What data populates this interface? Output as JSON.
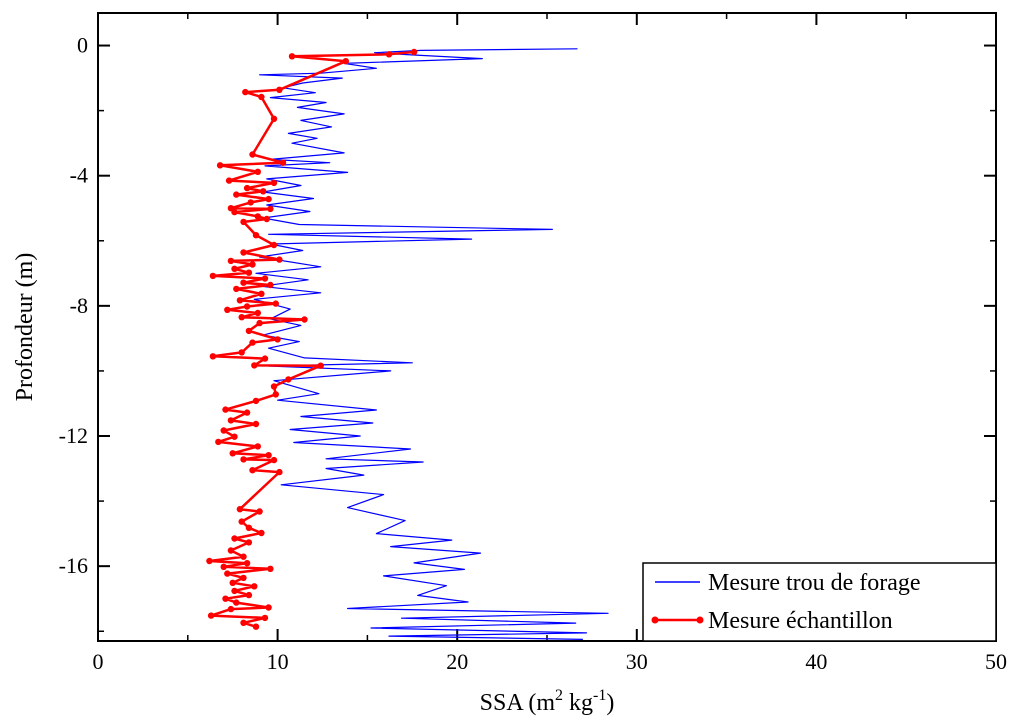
{
  "chart_data": {
    "type": "line",
    "xlabel": "SSA",
    "xlabel_unit_parts": [
      "(m",
      "2",
      " kg",
      "-1",
      ")"
    ],
    "ylabel": "Profondeur (m)",
    "xlim": [
      0,
      50
    ],
    "ylim": [
      -18.3,
      1.0
    ],
    "x_ticks": [
      0,
      10,
      20,
      30,
      40,
      50
    ],
    "x_tick_labels": [
      "0",
      "10",
      "20",
      "30",
      "40",
      "50"
    ],
    "y_ticks": [
      0,
      -4,
      -8,
      -12,
      -16
    ],
    "y_tick_labels": [
      "0",
      "-4",
      "-8",
      "-12",
      "-16"
    ],
    "grid": false,
    "legend_position": "bottom-right",
    "series": [
      {
        "name": "Mesure trou de forage",
        "color": "#0000ff",
        "marker": "none",
        "points": [
          [
            26.7,
            -0.1
          ],
          [
            18.0,
            -0.15
          ],
          [
            15.4,
            -0.22
          ],
          [
            17.2,
            -0.28
          ],
          [
            21.4,
            -0.4
          ],
          [
            13.7,
            -0.55
          ],
          [
            15.5,
            -0.7
          ],
          [
            12.4,
            -0.85
          ],
          [
            9.0,
            -0.9
          ],
          [
            13.6,
            -1.0
          ],
          [
            11.4,
            -1.15
          ],
          [
            10.3,
            -1.3
          ],
          [
            12.1,
            -1.45
          ],
          [
            9.6,
            -1.6
          ],
          [
            12.7,
            -1.75
          ],
          [
            11.1,
            -1.9
          ],
          [
            13.7,
            -2.1
          ],
          [
            11.3,
            -2.3
          ],
          [
            13.0,
            -2.5
          ],
          [
            10.6,
            -2.7
          ],
          [
            12.2,
            -2.85
          ],
          [
            10.8,
            -3.0
          ],
          [
            13.7,
            -3.3
          ],
          [
            9.6,
            -3.5
          ],
          [
            12.9,
            -3.6
          ],
          [
            9.3,
            -3.7
          ],
          [
            13.9,
            -3.9
          ],
          [
            9.4,
            -4.1
          ],
          [
            11.3,
            -4.3
          ],
          [
            9.2,
            -4.5
          ],
          [
            12.0,
            -4.7
          ],
          [
            9.4,
            -4.9
          ],
          [
            11.8,
            -5.1
          ],
          [
            9.2,
            -5.3
          ],
          [
            11.2,
            -5.5
          ],
          [
            25.3,
            -5.65
          ],
          [
            9.5,
            -5.8
          ],
          [
            20.8,
            -5.95
          ],
          [
            9.6,
            -6.1
          ],
          [
            11.4,
            -6.3
          ],
          [
            9.0,
            -6.5
          ],
          [
            12.4,
            -6.8
          ],
          [
            8.8,
            -7.0
          ],
          [
            11.7,
            -7.2
          ],
          [
            9.1,
            -7.4
          ],
          [
            12.4,
            -7.6
          ],
          [
            8.7,
            -7.8
          ],
          [
            10.7,
            -8.1
          ],
          [
            9.6,
            -8.4
          ],
          [
            11.3,
            -8.6
          ],
          [
            9.2,
            -8.9
          ],
          [
            11.2,
            -9.1
          ],
          [
            9.5,
            -9.3
          ],
          [
            11.5,
            -9.6
          ],
          [
            17.5,
            -9.75
          ],
          [
            9.5,
            -9.85
          ],
          [
            16.3,
            -10.0
          ],
          [
            9.8,
            -10.3
          ],
          [
            12.3,
            -10.7
          ],
          [
            10.0,
            -10.9
          ],
          [
            15.5,
            -11.2
          ],
          [
            11.3,
            -11.4
          ],
          [
            15.3,
            -11.6
          ],
          [
            10.7,
            -11.8
          ],
          [
            14.6,
            -12.0
          ],
          [
            10.9,
            -12.2
          ],
          [
            17.4,
            -12.4
          ],
          [
            12.7,
            -12.7
          ],
          [
            18.1,
            -12.8
          ],
          [
            12.7,
            -13.0
          ],
          [
            14.8,
            -13.2
          ],
          [
            10.2,
            -13.5
          ],
          [
            15.9,
            -13.8
          ],
          [
            13.9,
            -14.2
          ],
          [
            17.1,
            -14.6
          ],
          [
            15.5,
            -15.0
          ],
          [
            19.7,
            -15.2
          ],
          [
            16.3,
            -15.4
          ],
          [
            21.3,
            -15.6
          ],
          [
            17.6,
            -15.9
          ],
          [
            20.4,
            -16.1
          ],
          [
            15.9,
            -16.3
          ],
          [
            19.4,
            -16.6
          ],
          [
            17.8,
            -16.9
          ],
          [
            20.6,
            -17.1
          ],
          [
            13.9,
            -17.3
          ],
          [
            28.4,
            -17.45
          ],
          [
            16.9,
            -17.6
          ],
          [
            26.6,
            -17.75
          ],
          [
            15.2,
            -17.9
          ],
          [
            27.2,
            -18.05
          ],
          [
            16.2,
            -18.15
          ],
          [
            27.0,
            -18.25
          ]
        ]
      },
      {
        "name": "Mesure échantillon",
        "color": "#ff0000",
        "marker": "circle",
        "points": [
          [
            17.6,
            -0.2
          ],
          [
            16.2,
            -0.27
          ],
          [
            10.8,
            -0.33
          ],
          [
            13.8,
            -0.48
          ],
          [
            10.1,
            -1.36
          ],
          [
            8.2,
            -1.43
          ],
          [
            9.1,
            -1.58
          ],
          [
            9.8,
            -2.25
          ],
          [
            8.6,
            -3.35
          ],
          [
            10.3,
            -3.6
          ],
          [
            6.8,
            -3.68
          ],
          [
            8.9,
            -3.88
          ],
          [
            7.3,
            -4.15
          ],
          [
            9.8,
            -4.22
          ],
          [
            8.3,
            -4.38
          ],
          [
            9.2,
            -4.48
          ],
          [
            7.7,
            -4.58
          ],
          [
            9.5,
            -4.72
          ],
          [
            8.5,
            -4.82
          ],
          [
            7.4,
            -5.0
          ],
          [
            9.6,
            -5.02
          ],
          [
            7.6,
            -5.12
          ],
          [
            8.9,
            -5.25
          ],
          [
            9.4,
            -5.33
          ],
          [
            8.1,
            -5.42
          ],
          [
            8.8,
            -5.83
          ],
          [
            9.8,
            -6.13
          ],
          [
            8.1,
            -6.36
          ],
          [
            10.1,
            -6.58
          ],
          [
            7.4,
            -6.62
          ],
          [
            8.6,
            -6.73
          ],
          [
            7.6,
            -6.86
          ],
          [
            8.4,
            -6.98
          ],
          [
            6.4,
            -7.08
          ],
          [
            9.3,
            -7.16
          ],
          [
            8.1,
            -7.29
          ],
          [
            9.6,
            -7.36
          ],
          [
            7.7,
            -7.48
          ],
          [
            9.1,
            -7.63
          ],
          [
            7.9,
            -7.83
          ],
          [
            9.9,
            -7.93
          ],
          [
            8.3,
            -8.02
          ],
          [
            7.2,
            -8.12
          ],
          [
            8.9,
            -8.22
          ],
          [
            8.0,
            -8.35
          ],
          [
            11.5,
            -8.42
          ],
          [
            9.0,
            -8.53
          ],
          [
            8.4,
            -8.77
          ],
          [
            10.0,
            -9.03
          ],
          [
            8.6,
            -9.13
          ],
          [
            8.0,
            -9.43
          ],
          [
            6.4,
            -9.55
          ],
          [
            9.3,
            -9.62
          ],
          [
            8.7,
            -9.83
          ],
          [
            12.4,
            -9.84
          ],
          [
            10.6,
            -10.26
          ],
          [
            9.8,
            -10.48
          ],
          [
            9.9,
            -10.72
          ],
          [
            8.8,
            -10.92
          ],
          [
            7.1,
            -11.19
          ],
          [
            8.3,
            -11.28
          ],
          [
            7.4,
            -11.52
          ],
          [
            8.8,
            -11.63
          ],
          [
            7.0,
            -11.83
          ],
          [
            7.6,
            -12.02
          ],
          [
            6.7,
            -12.18
          ],
          [
            8.9,
            -12.32
          ],
          [
            7.5,
            -12.53
          ],
          [
            9.5,
            -12.59
          ],
          [
            8.1,
            -12.72
          ],
          [
            9.8,
            -12.74
          ],
          [
            8.6,
            -13.05
          ],
          [
            10.1,
            -13.11
          ],
          [
            7.9,
            -14.25
          ],
          [
            9.0,
            -14.32
          ],
          [
            8.0,
            -14.63
          ],
          [
            8.4,
            -14.82
          ],
          [
            9.1,
            -14.98
          ],
          [
            7.6,
            -15.15
          ],
          [
            8.4,
            -15.27
          ],
          [
            7.4,
            -15.52
          ],
          [
            8.1,
            -15.71
          ],
          [
            6.2,
            -15.84
          ],
          [
            8.3,
            -15.91
          ],
          [
            7.0,
            -16.02
          ],
          [
            9.6,
            -16.08
          ],
          [
            7.2,
            -16.23
          ],
          [
            8.1,
            -16.36
          ],
          [
            7.5,
            -16.51
          ],
          [
            8.7,
            -16.62
          ],
          [
            7.6,
            -16.76
          ],
          [
            8.4,
            -16.89
          ],
          [
            7.1,
            -17.0
          ],
          [
            7.7,
            -17.12
          ],
          [
            9.5,
            -17.27
          ],
          [
            7.4,
            -17.32
          ],
          [
            6.3,
            -17.52
          ],
          [
            9.3,
            -17.59
          ],
          [
            8.1,
            -17.74
          ],
          [
            8.8,
            -17.86
          ]
        ]
      }
    ]
  }
}
